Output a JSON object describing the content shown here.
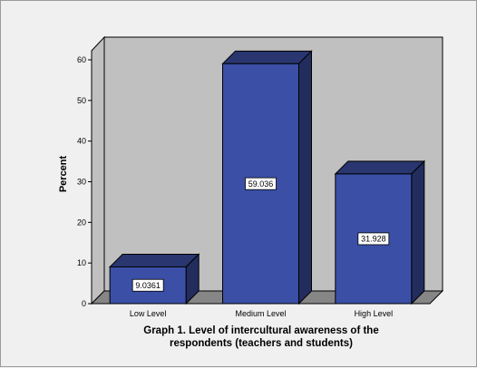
{
  "chart_data": {
    "type": "bar",
    "style": "3d",
    "categories": [
      "Low Level",
      "Medium Level",
      "High Level"
    ],
    "values": [
      9.0361,
      59.036,
      31.928
    ],
    "value_labels": [
      "9.0361",
      "59.036",
      "31.928"
    ],
    "ylabel": "Percent",
    "xlabel": "",
    "ylim": [
      0,
      60
    ],
    "yticks": [
      0,
      10,
      20,
      30,
      40,
      50,
      60
    ],
    "caption_lines": [
      "Graph 1. Level of intercultural awareness of the",
      "respondents (teachers and students)"
    ],
    "grid": false,
    "legend": "none",
    "colors": {
      "bar_front": "#3a4fa5",
      "bar_top": "#29366f",
      "bar_side": "#222d5e",
      "wall": "#c0c0c0",
      "floor": "#868686",
      "page": "#f0f0f0"
    }
  }
}
